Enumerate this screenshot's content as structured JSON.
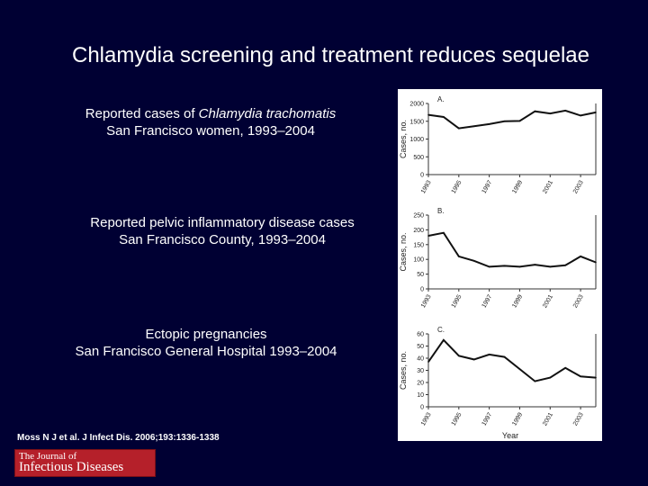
{
  "slide": {
    "title": "Chlamydia screening and treatment reduces sequelae",
    "caption_a": {
      "line1_prefix": "Reported cases of ",
      "line1_italic": "Chlamydia trachomatis",
      "line2": "San Francisco women, 1993–2004"
    },
    "caption_b": {
      "line1": "Reported pelvic inflammatory disease cases",
      "line2": "San Francisco County, 1993–2004"
    },
    "caption_c": {
      "line1": "Ectopic pregnancies",
      "line2": "San Francisco General Hospital 1993–2004"
    },
    "citation": "Moss N J et al. J Infect Dis. 2006;193:1336-1338",
    "journal": {
      "line1": "The Journal of",
      "line2": "Infectious Diseases",
      "color": "#b5202a"
    }
  },
  "figure": {
    "xlabel": "Year"
  },
  "chart_data": [
    {
      "type": "line",
      "panel_label": "A.",
      "ylabel": "Cases, no.",
      "ylim": [
        0,
        2000
      ],
      "yticks": [
        "0",
        "500",
        "1000",
        "1500",
        "2000"
      ],
      "yticks_values": [
        0,
        500,
        1000,
        1500,
        2000
      ],
      "xticks": [
        "1993",
        "1995",
        "1997",
        "1999",
        "2001",
        "2003"
      ],
      "xticks_values": [
        1993,
        1995,
        1997,
        1999,
        2001,
        2003
      ],
      "x": [
        1993,
        1994,
        1995,
        1996,
        1997,
        1998,
        1999,
        2000,
        2001,
        2002,
        2003,
        2004
      ],
      "values": [
        1680,
        1620,
        1300,
        1360,
        1420,
        1500,
        1510,
        1780,
        1720,
        1800,
        1660,
        1750
      ]
    },
    {
      "type": "line",
      "panel_label": "B.",
      "ylabel": "Cases, no.",
      "ylim": [
        0,
        250
      ],
      "yticks": [
        "0",
        "50",
        "100",
        "150",
        "200",
        "250"
      ],
      "yticks_values": [
        0,
        50,
        100,
        150,
        200,
        250
      ],
      "xticks": [
        "1993",
        "1995",
        "1997",
        "1999",
        "2001",
        "2003"
      ],
      "xticks_values": [
        1993,
        1995,
        1997,
        1999,
        2001,
        2003
      ],
      "x": [
        1993,
        1994,
        1995,
        1996,
        1997,
        1998,
        1999,
        2000,
        2001,
        2002,
        2003,
        2004
      ],
      "values": [
        180,
        190,
        110,
        95,
        75,
        78,
        75,
        82,
        75,
        80,
        110,
        90
      ]
    },
    {
      "type": "line",
      "panel_label": "C.",
      "ylabel": "Cases, no.",
      "ylim": [
        0,
        60
      ],
      "yticks": [
        "0",
        "10",
        "20",
        "30",
        "40",
        "50",
        "60"
      ],
      "yticks_values": [
        0,
        10,
        20,
        30,
        40,
        50,
        60
      ],
      "xticks": [
        "1993",
        "1995",
        "1997",
        "1999",
        "2001",
        "2003"
      ],
      "xticks_values": [
        1993,
        1995,
        1997,
        1999,
        2001,
        2003
      ],
      "x": [
        1993,
        1994,
        1995,
        1996,
        1997,
        1998,
        1999,
        2000,
        2001,
        2002,
        2003,
        2004
      ],
      "values": [
        37,
        55,
        42,
        39,
        43,
        41,
        31,
        21,
        24,
        32,
        25,
        24
      ]
    }
  ]
}
